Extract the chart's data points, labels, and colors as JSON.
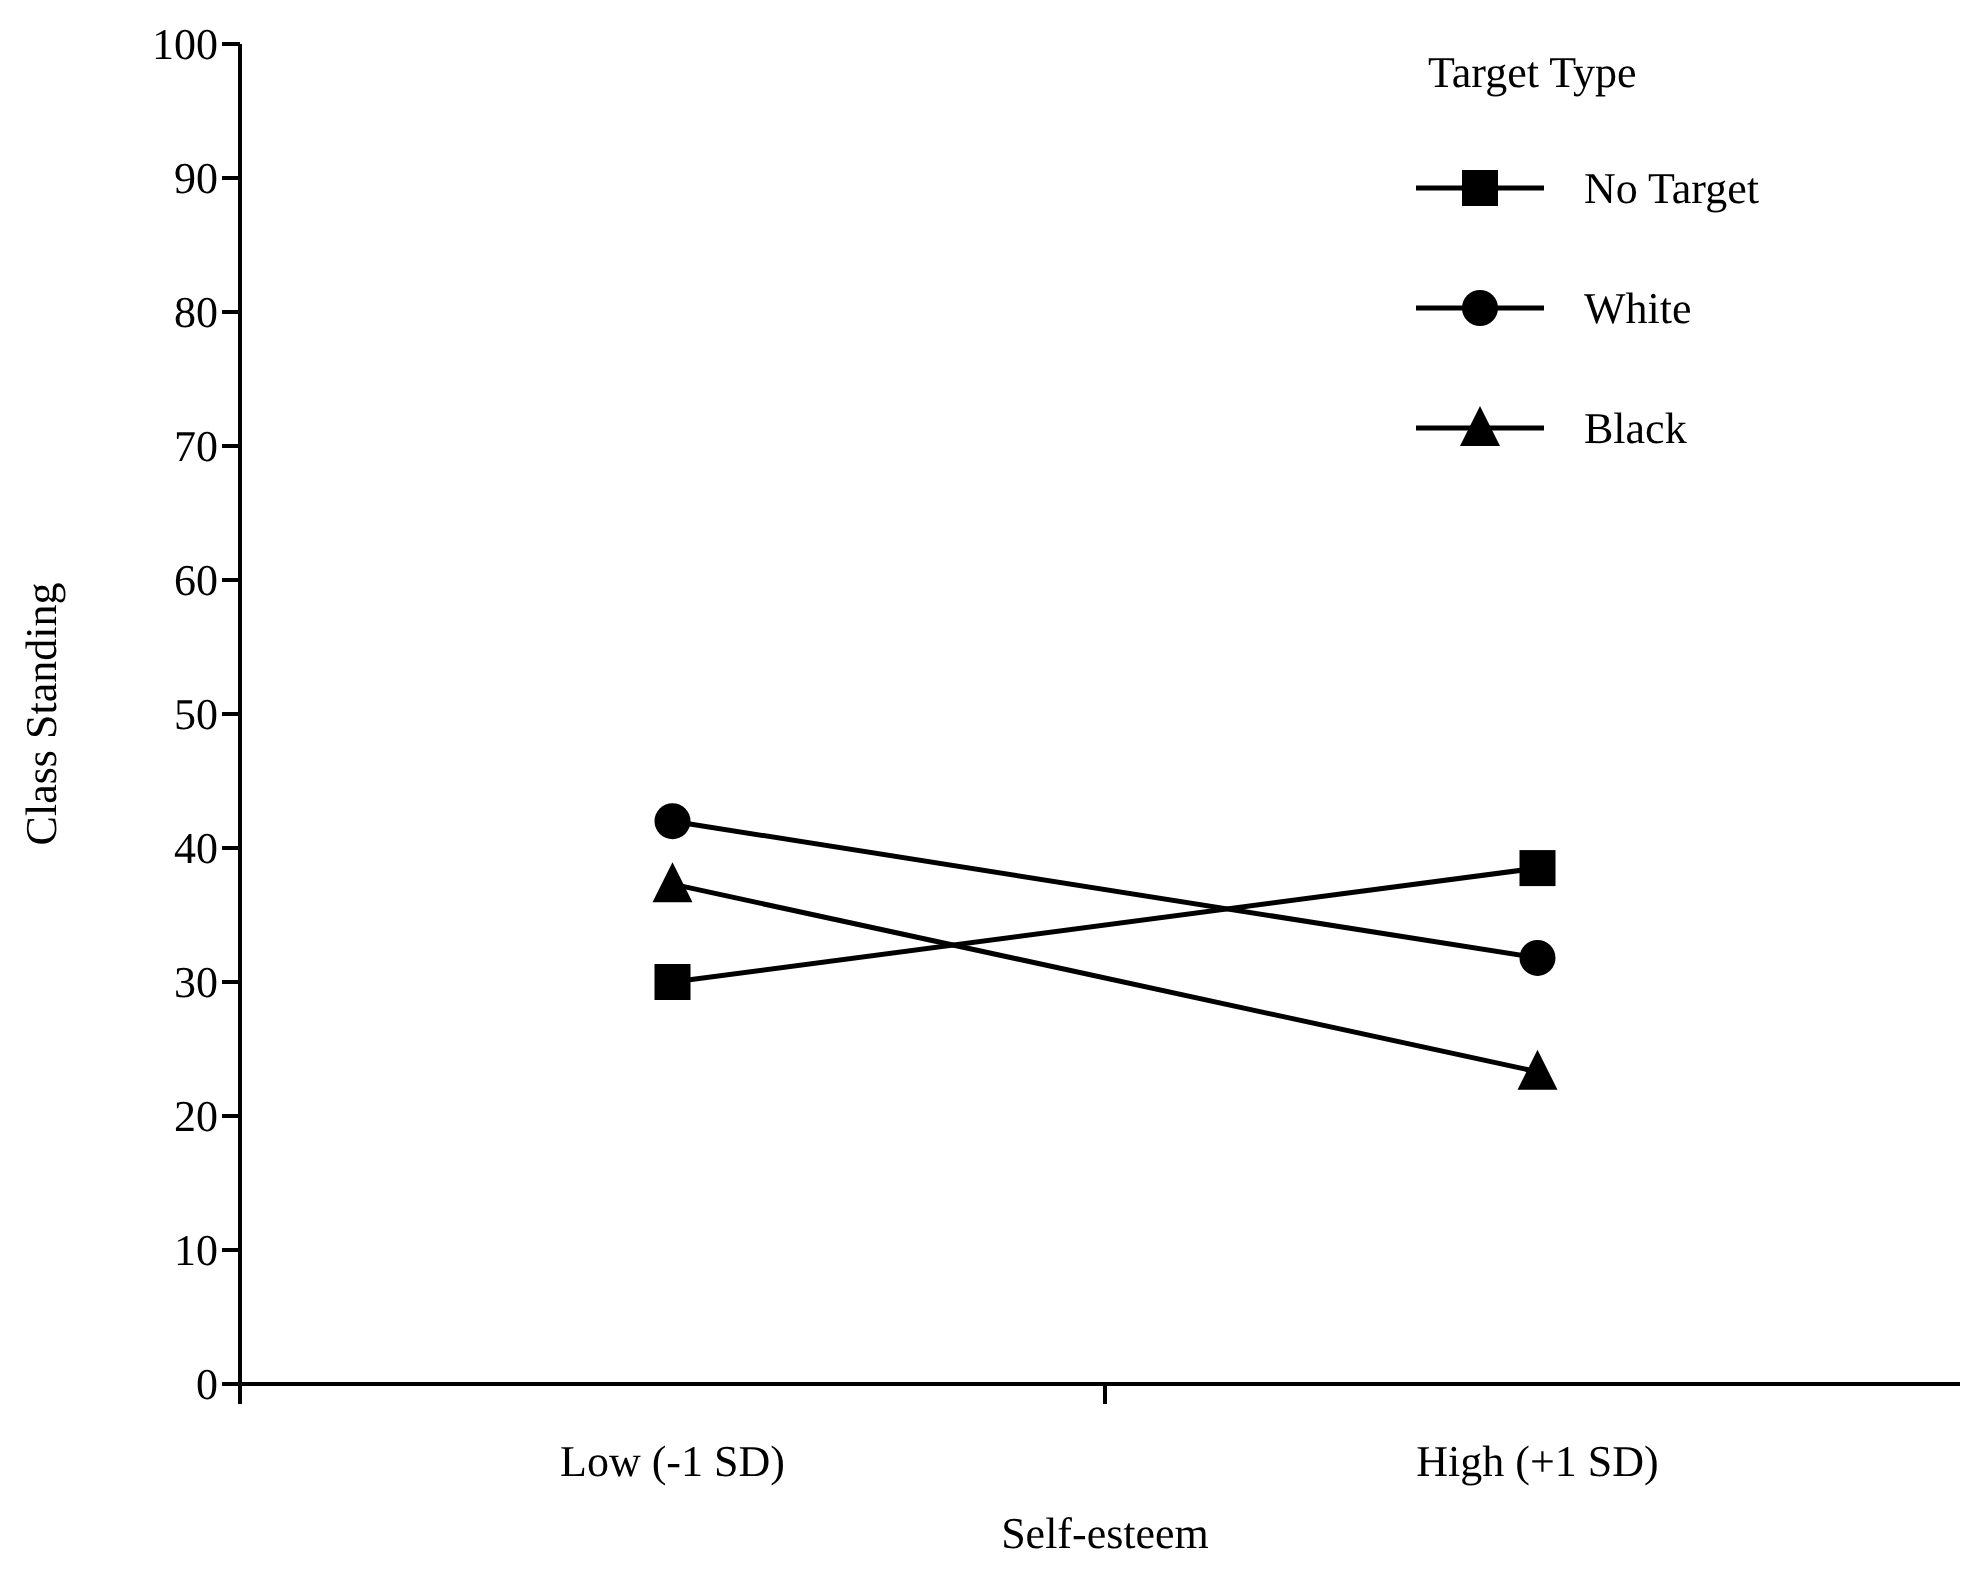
{
  "chart_data": {
    "type": "line",
    "xlabel": "Self-esteem",
    "ylabel": "Class Standing",
    "legend_title": "Target Type",
    "legend": "top right",
    "grid": false,
    "categories": [
      "Low (-1 SD)",
      "High (+1 SD)"
    ],
    "ylim": [
      0,
      100
    ],
    "yticks": [
      0,
      10,
      20,
      30,
      40,
      50,
      60,
      70,
      80,
      90,
      100
    ],
    "series": [
      {
        "name": "No Target",
        "color": "#000000",
        "marker": "square",
        "values": [
          30,
          38.5
        ]
      },
      {
        "name": "White",
        "color": "#000000",
        "marker": "circle",
        "values": [
          42,
          31.8
        ]
      },
      {
        "name": "Black",
        "color": "#000000",
        "marker": "triangle",
        "values": [
          37.3,
          23.3
        ]
      }
    ]
  }
}
